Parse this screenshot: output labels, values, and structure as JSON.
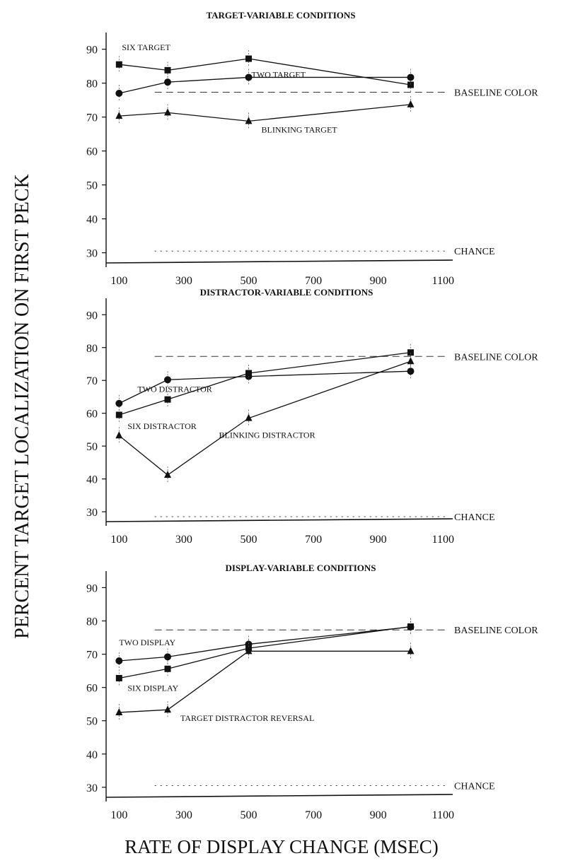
{
  "figure": {
    "ylabel": "PERCENT TARGET LOCALIZATION ON FIRST PECK",
    "xlabel": "RATE OF DISPLAY CHANGE (MSEC)"
  },
  "chart_data": [
    {
      "type": "line",
      "title": "TARGET-VARIABLE CONDITIONS",
      "xlabel": "RATE OF DISPLAY CHANGE (MSEC)",
      "ylabel": "PERCENT TARGET LOCALIZATION ON FIRST PECK",
      "x": [
        100,
        250,
        500,
        1000
      ],
      "xticks": [
        100,
        300,
        500,
        700,
        900,
        1100
      ],
      "yticks": [
        30,
        40,
        50,
        60,
        70,
        80,
        90
      ],
      "xlim": [
        60,
        1130
      ],
      "ylim": [
        27,
        92
      ],
      "series": [
        {
          "name": "SIX TARGET",
          "marker": "square",
          "values": [
            85.5,
            83.8,
            87.2,
            79.5
          ]
        },
        {
          "name": "TWO TARGET",
          "marker": "circle",
          "values": [
            77,
            80.3,
            81.7,
            81.7
          ]
        },
        {
          "name": "BLINKING TARGET",
          "marker": "triangle",
          "values": [
            70.3,
            71.3,
            68.8,
            73.7
          ]
        }
      ],
      "reference_lines": [
        {
          "label": "BASELINE COLOR",
          "y": 77.3,
          "style": "dashed"
        },
        {
          "label": "CHANCE",
          "y": 30.5,
          "style": "dotted"
        }
      ],
      "grid": false
    },
    {
      "type": "line",
      "title": "DISTRACTOR-VARIABLE CONDITIONS",
      "xlabel": "RATE OF DISPLAY CHANGE (MSEC)",
      "ylabel": "PERCENT TARGET LOCALIZATION ON FIRST PECK",
      "x": [
        100,
        250,
        500,
        1000
      ],
      "xticks": [
        100,
        300,
        500,
        700,
        900,
        1100
      ],
      "yticks": [
        30,
        40,
        50,
        60,
        70,
        80,
        90
      ],
      "xlim": [
        60,
        1130
      ],
      "ylim": [
        27,
        92
      ],
      "series": [
        {
          "name": "TWO DISTRACTOR",
          "marker": "circle",
          "values": [
            63,
            70.2,
            71.2,
            72.8
          ]
        },
        {
          "name": "SIX DISTRACTOR",
          "marker": "square",
          "values": [
            59.5,
            64.2,
            72.2,
            78.5
          ]
        },
        {
          "name": "BLINKING DISTRACTOR",
          "marker": "triangle",
          "values": [
            53.2,
            41.2,
            58.5,
            75.8
          ]
        }
      ],
      "reference_lines": [
        {
          "label": "BASELINE COLOR",
          "y": 77.3,
          "style": "dashed"
        },
        {
          "label": "CHANCE",
          "y": 28.5,
          "style": "dotted"
        }
      ],
      "grid": false
    },
    {
      "type": "line",
      "title": "DISPLAY-VARIABLE CONDITIONS",
      "xlabel": "RATE OF DISPLAY CHANGE (MSEC)",
      "ylabel": "PERCENT TARGET LOCALIZATION ON FIRST PECK",
      "x": [
        100,
        250,
        500,
        1000
      ],
      "xticks": [
        100,
        300,
        500,
        700,
        900,
        1100
      ],
      "yticks": [
        30,
        40,
        50,
        60,
        70,
        80,
        90
      ],
      "xlim": [
        60,
        1130
      ],
      "ylim": [
        27,
        92
      ],
      "series": [
        {
          "name": "TWO DISPLAY",
          "marker": "circle",
          "values": [
            68,
            69.2,
            73,
            78.2
          ]
        },
        {
          "name": "SIX DISPLAY",
          "marker": "square",
          "values": [
            62.8,
            65.6,
            71.8,
            78.3
          ]
        },
        {
          "name": "TARGET DISTRACTOR REVERSAL",
          "marker": "triangle",
          "values": [
            52.5,
            53.3,
            70.9,
            70.9
          ]
        }
      ],
      "reference_lines": [
        {
          "label": "BASELINE COLOR",
          "y": 77.3,
          "style": "dashed"
        },
        {
          "label": "CHANCE",
          "y": 30.5,
          "style": "dotted"
        }
      ],
      "grid": false
    }
  ]
}
